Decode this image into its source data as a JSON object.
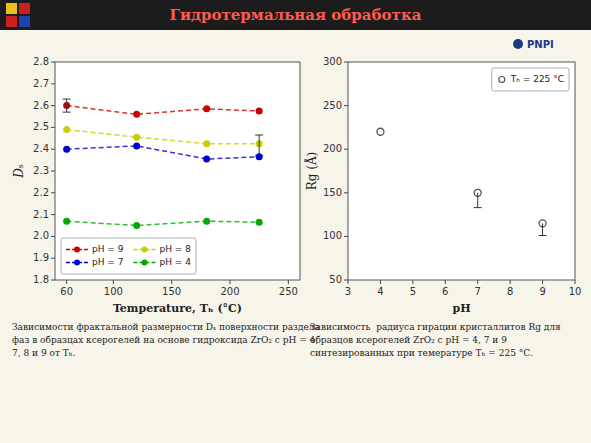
{
  "title": "Гидротермальная обработка",
  "annotations": [
    "PNPI"
  ],
  "chart_data": [
    {
      "type": "line",
      "xlabel": "Temperature, Tₕ (°C)",
      "ylabel": "Dₛ",
      "x": [
        60,
        120,
        180,
        225
      ],
      "series": [
        {
          "name": "pH = 9",
          "color": "#cc0000",
          "marker": "circle",
          "line_style": "dashed",
          "values": [
            2.6,
            2.56,
            2.585,
            2.575
          ],
          "error_minus": [
            0.03,
            0,
            0,
            0
          ],
          "error_plus": [
            0.03,
            0,
            0,
            0
          ]
        },
        {
          "name": "pH = 8",
          "color": "#cccc00",
          "marker": "circle",
          "line_style": "dashed",
          "values": [
            2.49,
            2.455,
            2.425,
            2.425
          ],
          "error_minus": [
            0,
            0,
            0,
            0.055
          ],
          "error_plus": [
            0,
            0,
            0,
            0.04
          ]
        },
        {
          "name": "pH = 7",
          "color": "#0000cc",
          "marker": "circle",
          "line_style": "dashed",
          "values": [
            2.4,
            2.415,
            2.355,
            2.365
          ],
          "error_minus": [
            0,
            0,
            0,
            0
          ],
          "error_plus": [
            0,
            0,
            0,
            0
          ]
        },
        {
          "name": "pH = 4",
          "color": "#00aa00",
          "marker": "circle",
          "line_style": "dashed",
          "values": [
            2.07,
            2.05,
            2.07,
            2.065
          ],
          "error_minus": [
            0,
            0,
            0,
            0
          ],
          "error_plus": [
            0,
            0,
            0,
            0
          ]
        }
      ],
      "xlim": [
        50,
        260
      ],
      "ylim": [
        1.8,
        2.8
      ],
      "xticks": [
        60,
        100,
        150,
        200,
        250
      ],
      "yticks": [
        1.8,
        1.9,
        {
          "value": 2.0,
          "label": "2.0"
        },
        2.1,
        2.2,
        2.3,
        2.4,
        2.5,
        2.6,
        2.7,
        2.8
      ],
      "legend": "lower left",
      "grid": false,
      "annotations": [
        "Зависимости фрактальной размерности Dₛ поверхности раздела\nфаз в образцах ксерогелей на основе гидроксида ZrO₂ с pH = 4,\n7, 8 и 9 от Tₕ."
      ]
    },
    {
      "type": "scatter",
      "xlabel": "pH",
      "ylabel": "Rg (Å)",
      "x": [
        4,
        7,
        9
      ],
      "series": [
        {
          "name": "Tₕ = 225 °C",
          "color": "#555555",
          "marker": "open_circle",
          "values": [
            220,
            150,
            115
          ],
          "error_minus": [
            0,
            17,
            14
          ]
        }
      ],
      "xlim": [
        3,
        10
      ],
      "ylim": [
        50,
        300
      ],
      "xticks": [
        3,
        4,
        5,
        6,
        7,
        8,
        9,
        10
      ],
      "yticks": [
        50,
        100,
        150,
        200,
        250,
        300
      ],
      "legend": "upper right",
      "grid": false,
      "annotations": [
        "Зависимость  радиуса гирации кристаллитов Rg для\nобразцов ксерогелей ZrO₂ с pH = 4, 7 и 9\nсинтезированных при темературе Tₕ = 225 °С."
      ]
    }
  ]
}
